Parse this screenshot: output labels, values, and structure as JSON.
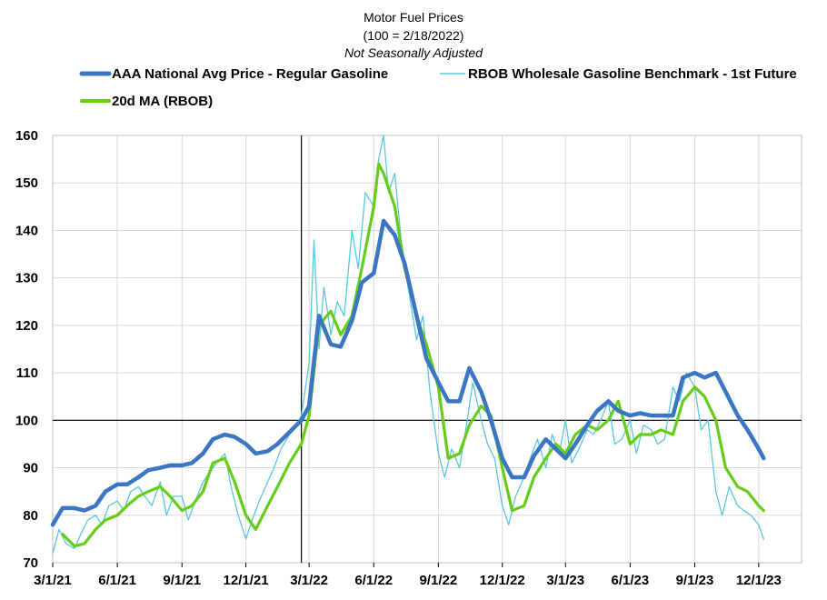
{
  "chart_data": {
    "type": "line",
    "title": "Motor Fuel Prices",
    "title_line2": "(100 = 2/18/2022)",
    "subtitle": "Not Seasonally Adjusted",
    "xlabel": "",
    "ylabel": "",
    "ylim": [
      70,
      160
    ],
    "yticks": [
      "160",
      "150",
      "140",
      "130",
      "120",
      "110",
      "100",
      "90",
      "80",
      "70"
    ],
    "xticks": [
      "3/1/21",
      "6/1/21",
      "9/1/21",
      "12/1/21",
      "3/1/22",
      "6/1/22",
      "9/1/22",
      "12/1/22",
      "3/1/23",
      "6/1/23",
      "9/1/23",
      "12/1/23"
    ],
    "x_range": [
      "2021-03-01",
      "2024-01-31"
    ],
    "grid": true,
    "legend_position": "top",
    "reference_lines": {
      "y": 100,
      "x": "2022-02-18"
    },
    "series": [
      {
        "name": "AAA National Avg Price - Regular Gasoline",
        "color": "#3B76C4",
        "style": "thick",
        "x": [
          "2021-03-01",
          "2021-03-15",
          "2021-04-01",
          "2021-04-15",
          "2021-05-01",
          "2021-05-15",
          "2021-06-01",
          "2021-06-15",
          "2021-07-01",
          "2021-07-15",
          "2021-08-01",
          "2021-08-15",
          "2021-09-01",
          "2021-09-15",
          "2021-10-01",
          "2021-10-15",
          "2021-11-01",
          "2021-11-15",
          "2021-12-01",
          "2021-12-15",
          "2022-01-01",
          "2022-01-15",
          "2022-02-01",
          "2022-02-18",
          "2022-03-01",
          "2022-03-15",
          "2022-04-01",
          "2022-04-15",
          "2022-05-01",
          "2022-05-15",
          "2022-06-01",
          "2022-06-15",
          "2022-07-01",
          "2022-07-15",
          "2022-08-01",
          "2022-08-15",
          "2022-09-01",
          "2022-09-15",
          "2022-10-01",
          "2022-10-15",
          "2022-11-01",
          "2022-11-15",
          "2022-12-01",
          "2022-12-15",
          "2023-01-01",
          "2023-01-15",
          "2023-02-01",
          "2023-02-15",
          "2023-03-01",
          "2023-03-15",
          "2023-04-01",
          "2023-04-15",
          "2023-05-01",
          "2023-05-15",
          "2023-06-01",
          "2023-06-15",
          "2023-07-01",
          "2023-07-15",
          "2023-08-01",
          "2023-08-15",
          "2023-09-01",
          "2023-09-15",
          "2023-10-01",
          "2023-10-15",
          "2023-11-01",
          "2023-11-15",
          "2023-12-01",
          "2023-12-08"
        ],
        "values": [
          78,
          81.5,
          81.5,
          81,
          82,
          85,
          86.5,
          86.5,
          88,
          89.5,
          90,
          90.5,
          90.5,
          91,
          93,
          96,
          97,
          96.5,
          95,
          93,
          93.5,
          95,
          97.5,
          100,
          103,
          122,
          116,
          115.5,
          121,
          129,
          131,
          142,
          139,
          133,
          122,
          113,
          108,
          104,
          104,
          111,
          106,
          100,
          92,
          88,
          88,
          92.5,
          96,
          94,
          92,
          95,
          99,
          102,
          104,
          102,
          101,
          101.5,
          101,
          101,
          101,
          109,
          110,
          109,
          110,
          106,
          101,
          98,
          94,
          92
        ]
      },
      {
        "name": "RBOB Wholesale Gasoline Benchmark - 1st Future",
        "color": "#5BC8DE",
        "style": "thin",
        "x": [
          "2021-03-01",
          "2021-03-10",
          "2021-03-20",
          "2021-04-01",
          "2021-04-10",
          "2021-04-20",
          "2021-05-01",
          "2021-05-10",
          "2021-05-20",
          "2021-06-01",
          "2021-06-10",
          "2021-06-20",
          "2021-07-01",
          "2021-07-10",
          "2021-07-20",
          "2021-08-01",
          "2021-08-10",
          "2021-08-20",
          "2021-09-01",
          "2021-09-10",
          "2021-09-20",
          "2021-10-01",
          "2021-10-10",
          "2021-10-20",
          "2021-11-01",
          "2021-11-10",
          "2021-11-20",
          "2021-12-01",
          "2021-12-10",
          "2021-12-20",
          "2022-01-01",
          "2022-01-10",
          "2022-01-20",
          "2022-02-01",
          "2022-02-10",
          "2022-02-18",
          "2022-03-01",
          "2022-03-08",
          "2022-03-15",
          "2022-03-22",
          "2022-04-01",
          "2022-04-10",
          "2022-04-20",
          "2022-05-01",
          "2022-05-10",
          "2022-05-20",
          "2022-06-01",
          "2022-06-08",
          "2022-06-15",
          "2022-06-22",
          "2022-07-01",
          "2022-07-10",
          "2022-07-20",
          "2022-08-01",
          "2022-08-10",
          "2022-08-20",
          "2022-09-01",
          "2022-09-10",
          "2022-09-20",
          "2022-10-01",
          "2022-10-10",
          "2022-10-20",
          "2022-11-01",
          "2022-11-10",
          "2022-11-20",
          "2022-12-01",
          "2022-12-10",
          "2022-12-20",
          "2023-01-01",
          "2023-01-10",
          "2023-01-20",
          "2023-02-01",
          "2023-02-10",
          "2023-02-20",
          "2023-03-01",
          "2023-03-10",
          "2023-03-20",
          "2023-04-01",
          "2023-04-10",
          "2023-04-20",
          "2023-05-01",
          "2023-05-10",
          "2023-05-20",
          "2023-06-01",
          "2023-06-10",
          "2023-06-20",
          "2023-07-01",
          "2023-07-10",
          "2023-07-20",
          "2023-08-01",
          "2023-08-10",
          "2023-08-20",
          "2023-09-01",
          "2023-09-10",
          "2023-09-20",
          "2023-10-01",
          "2023-10-10",
          "2023-10-20",
          "2023-11-01",
          "2023-11-10",
          "2023-11-20",
          "2023-12-01",
          "2023-12-08"
        ],
        "values": [
          72,
          77,
          74,
          73,
          76,
          79,
          80,
          78,
          82,
          83,
          81,
          85,
          86,
          84,
          82,
          87,
          80,
          84,
          84,
          79,
          83,
          87,
          89,
          91,
          93,
          86,
          80,
          75,
          79,
          83,
          87,
          90,
          94,
          97,
          99,
          101,
          112,
          138,
          115,
          128,
          118,
          125,
          122,
          140,
          132,
          148,
          145,
          155,
          160,
          148,
          152,
          138,
          128,
          117,
          122,
          106,
          93,
          88,
          94,
          90,
          98,
          108,
          100,
          95,
          92,
          82,
          78,
          84,
          88,
          92,
          96,
          90,
          97,
          93,
          100,
          91,
          94,
          98,
          97,
          100,
          104,
          95,
          96,
          100,
          93,
          99,
          98,
          95,
          96,
          107,
          104,
          110,
          107,
          98,
          100,
          85,
          80,
          86,
          82,
          81,
          80,
          78,
          75
        ]
      },
      {
        "name": "20d MA (RBOB)",
        "color": "#66CC1A",
        "style": "medium",
        "x": [
          "2021-03-15",
          "2021-04-01",
          "2021-04-15",
          "2021-05-01",
          "2021-05-15",
          "2021-06-01",
          "2021-06-15",
          "2021-07-01",
          "2021-07-15",
          "2021-08-01",
          "2021-08-15",
          "2021-09-01",
          "2021-09-15",
          "2021-10-01",
          "2021-10-15",
          "2021-11-01",
          "2021-11-15",
          "2021-12-01",
          "2021-12-15",
          "2022-01-01",
          "2022-01-15",
          "2022-02-01",
          "2022-02-18",
          "2022-03-01",
          "2022-03-15",
          "2022-04-01",
          "2022-04-15",
          "2022-05-01",
          "2022-05-15",
          "2022-06-01",
          "2022-06-08",
          "2022-06-15",
          "2022-07-01",
          "2022-07-15",
          "2022-08-01",
          "2022-08-15",
          "2022-09-01",
          "2022-09-15",
          "2022-10-01",
          "2022-10-15",
          "2022-11-01",
          "2022-11-15",
          "2022-12-01",
          "2022-12-15",
          "2023-01-01",
          "2023-01-15",
          "2023-02-01",
          "2023-02-15",
          "2023-03-01",
          "2023-03-15",
          "2023-04-01",
          "2023-04-15",
          "2023-05-01",
          "2023-05-15",
          "2023-06-01",
          "2023-06-15",
          "2023-07-01",
          "2023-07-15",
          "2023-08-01",
          "2023-08-15",
          "2023-09-01",
          "2023-09-15",
          "2023-10-01",
          "2023-10-15",
          "2023-11-01",
          "2023-11-15",
          "2023-12-01",
          "2023-12-08"
        ],
        "values": [
          76,
          73.5,
          74,
          77,
          79,
          80,
          82,
          84,
          85,
          86,
          84,
          81,
          82,
          85,
          91,
          92,
          87,
          80,
          77,
          82,
          86,
          91,
          95,
          101,
          120,
          123,
          118,
          122,
          132,
          145,
          154,
          152,
          145,
          132,
          122,
          116,
          107,
          92,
          93,
          99,
          103,
          101,
          90,
          81,
          82,
          88,
          92,
          95,
          93,
          97,
          99,
          98,
          100,
          104,
          95,
          97,
          97,
          98,
          97,
          104,
          107,
          105,
          100,
          90,
          86,
          85,
          82,
          81
        ]
      }
    ]
  }
}
